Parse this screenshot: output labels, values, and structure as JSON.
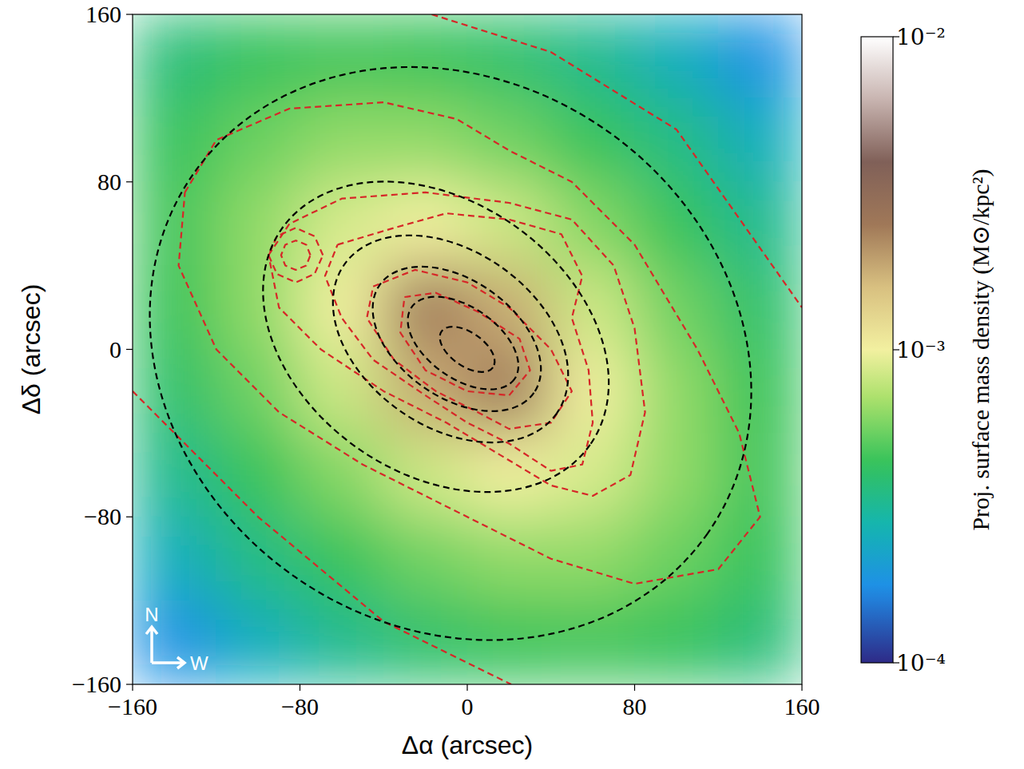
{
  "chart_data": {
    "type": "heatmap",
    "x_label": "Δα (arcsec)",
    "y_label": "Δδ (arcsec)",
    "xlim": [
      -160,
      160
    ],
    "ylim": [
      -160,
      160
    ],
    "xticks": [
      {
        "value": -160,
        "label": "−160"
      },
      {
        "value": -80,
        "label": "−80"
      },
      0,
      80,
      160
    ],
    "yticks": [
      {
        "value": -160,
        "label": "−160"
      },
      {
        "value": -80,
        "label": "−80"
      },
      0,
      80,
      160
    ],
    "grid": false,
    "x": [
      -140,
      -100,
      -60,
      -20,
      20,
      60,
      100,
      140
    ],
    "y": [
      140,
      100,
      60,
      20,
      -20,
      -60,
      -100,
      -140
    ],
    "values": [
      [
        0.00037,
        0.00043,
        0.00046,
        0.00044,
        0.0004,
        0.00033,
        0.00025,
        0.00018
      ],
      [
        0.00043,
        0.00054,
        0.00063,
        0.00063,
        0.00055,
        0.00044,
        0.00035,
        0.00025
      ],
      [
        0.00046,
        0.00063,
        0.00087,
        0.001,
        0.00083,
        0.0006,
        0.00044,
        0.00033
      ],
      [
        0.00044,
        0.00063,
        0.001,
        0.0026,
        0.0018,
        0.00083,
        0.00055,
        0.0004
      ],
      [
        0.0004,
        0.00055,
        0.00083,
        0.0018,
        0.0026,
        0.001,
        0.00063,
        0.00044
      ],
      [
        0.00033,
        0.00044,
        0.0006,
        0.00083,
        0.001,
        0.00087,
        0.00063,
        0.00046
      ],
      [
        0.00025,
        0.00035,
        0.00044,
        0.00055,
        0.00063,
        0.00063,
        0.00054,
        0.00043
      ],
      [
        0.00018,
        0.00025,
        0.00033,
        0.0004,
        0.00044,
        0.00046,
        0.00043,
        0.00037
      ]
    ],
    "colorbar": {
      "label": "Proj. surface mass density (M⊙/kpc²)",
      "lim": [
        0.0001,
        0.01
      ],
      "ticks": [
        {
          "value": 0.0001,
          "label": "10⁻⁴"
        },
        {
          "value": 0.001,
          "label": "10⁻³"
        },
        {
          "value": 0.01,
          "label": "10⁻²"
        }
      ],
      "log": true
    },
    "black_contours": [
      {
        "cx": 0,
        "cy": 0,
        "a": 15,
        "b": 8,
        "angle": -35
      },
      {
        "cx": -2,
        "cy": 3,
        "a": 30,
        "b": 17,
        "angle": -35
      },
      {
        "cx": -5,
        "cy": 5,
        "a": 45,
        "b": 28,
        "angle": -35
      },
      {
        "cx": -8,
        "cy": 5,
        "a": 62,
        "b": 42,
        "angle": -35
      },
      {
        "cx": -15,
        "cy": 6,
        "a": 90,
        "b": 65,
        "angle": -35
      },
      {
        "cx": -8,
        "cy": -2,
        "a": 150,
        "b": 130,
        "angle": -35
      }
    ],
    "red_contours": [
      {
        "x": [
          -30,
          -15,
          5,
          25,
          30,
          20,
          0,
          -20,
          -32,
          -30
        ],
        "y": [
          25,
          27,
          18,
          5,
          -10,
          -22,
          -20,
          -10,
          8,
          25
        ]
      },
      {
        "x": [
          -45,
          -25,
          0,
          20,
          40,
          50,
          40,
          20,
          5,
          -15,
          -35,
          -48,
          -45
        ],
        "y": [
          30,
          38,
          32,
          20,
          0,
          -20,
          -35,
          -38,
          -30,
          -20,
          -5,
          15,
          30
        ]
      },
      {
        "x": [
          -62,
          -35,
          -10,
          20,
          45,
          55,
          50,
          58,
          60,
          55,
          40,
          20,
          0,
          -20,
          -45,
          -60,
          -68,
          -62
        ],
        "y": [
          50,
          58,
          65,
          62,
          55,
          35,
          15,
          -10,
          -35,
          -55,
          -58,
          -45,
          -35,
          -22,
          -5,
          15,
          35,
          50
        ]
      },
      {
        "x": [
          -95,
          -85,
          -60,
          -20,
          20,
          50,
          70,
          80,
          85,
          78,
          60,
          40,
          15,
          -10,
          -40,
          -70,
          -90,
          -95
        ],
        "y": [
          45,
          60,
          72,
          75,
          70,
          62,
          40,
          10,
          -30,
          -60,
          -70,
          -65,
          -50,
          -35,
          -20,
          0,
          20,
          45
        ]
      },
      {
        "x": [
          -135,
          -120,
          -85,
          -40,
          -5,
          20,
          50,
          80,
          110,
          130,
          140,
          120,
          80,
          40,
          0,
          -50,
          -90,
          -120,
          -138,
          -135
        ],
        "y": [
          75,
          100,
          115,
          118,
          110,
          95,
          80,
          50,
          0,
          -40,
          -80,
          -105,
          -112,
          -100,
          -80,
          -55,
          -30,
          0,
          40,
          75
        ]
      },
      {
        "x": [
          -75,
          -77,
          -82,
          -87,
          -89,
          -87,
          -82,
          -77,
          -75
        ],
        "y": [
          45,
          50,
          52,
          50,
          45,
          40,
          38,
          40,
          45
        ]
      },
      {
        "x": [
          -69,
          -73,
          -82,
          -91,
          -95,
          -91,
          -82,
          -73,
          -69
        ],
        "y": [
          45,
          54,
          58,
          54,
          45,
          36,
          32,
          36,
          45
        ]
      },
      {
        "x": [
          -17,
          40,
          100,
          160
        ],
        "y": [
          160,
          142,
          105,
          20
        ]
      },
      {
        "x": [
          -160,
          -100,
          -40,
          21
        ],
        "y": [
          -20,
          -80,
          -130,
          -160
        ]
      }
    ],
    "compass": {
      "north": "N",
      "west": "W"
    }
  }
}
